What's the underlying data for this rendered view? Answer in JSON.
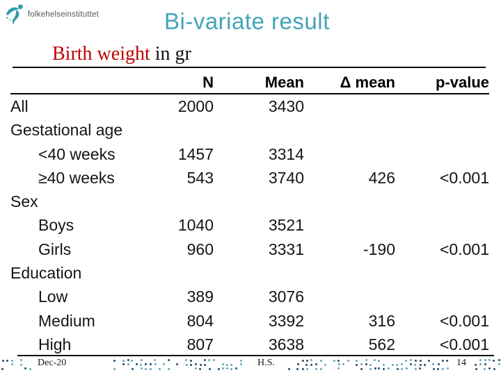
{
  "logo": {
    "text": "folkehelseinstituttet"
  },
  "header": {
    "title": "Bi-variate result"
  },
  "subtitle": {
    "highlight": "Birth weight",
    "rest": " in gr"
  },
  "table": {
    "headers": [
      "",
      "N",
      "Mean",
      "Δ mean",
      "p-value"
    ],
    "rows": [
      {
        "label": "All",
        "indent": false,
        "n": "2000",
        "mean": "3430",
        "delta": "",
        "p": ""
      },
      {
        "label": "Gestational age",
        "indent": false,
        "n": "",
        "mean": "",
        "delta": "",
        "p": ""
      },
      {
        "label": "<40 weeks",
        "indent": true,
        "n": "1457",
        "mean": "3314",
        "delta": "",
        "p": ""
      },
      {
        "label": "≥40 weeks",
        "indent": true,
        "n": "543",
        "mean": "3740",
        "delta": "426",
        "p": "<0.001"
      },
      {
        "label": "Sex",
        "indent": false,
        "n": "",
        "mean": "",
        "delta": "",
        "p": ""
      },
      {
        "label": "Boys",
        "indent": true,
        "n": "1040",
        "mean": "3521",
        "delta": "",
        "p": ""
      },
      {
        "label": "Girls",
        "indent": true,
        "n": "960",
        "mean": "3331",
        "delta": "-190",
        "p": "<0.001"
      },
      {
        "label": "Education",
        "indent": false,
        "n": "",
        "mean": "",
        "delta": "",
        "p": ""
      },
      {
        "label": "Low",
        "indent": true,
        "n": "389",
        "mean": "3076",
        "delta": "",
        "p": ""
      },
      {
        "label": "Medium",
        "indent": true,
        "n": "804",
        "mean": "3392",
        "delta": "316",
        "p": "<0.001"
      },
      {
        "label": "High",
        "indent": true,
        "n": "807",
        "mean": "3638",
        "delta": "562",
        "p": "<0.001"
      }
    ]
  },
  "footer": {
    "date": "Dec-20",
    "initials": "H.S.",
    "page_number": "14"
  },
  "colors": {
    "title_teal": "#44a3b8",
    "subtitle_red": "#c00000",
    "logo_teal": "#2f9cab",
    "dot_teal": "#62a8b8",
    "dot_navy": "#28496b"
  }
}
